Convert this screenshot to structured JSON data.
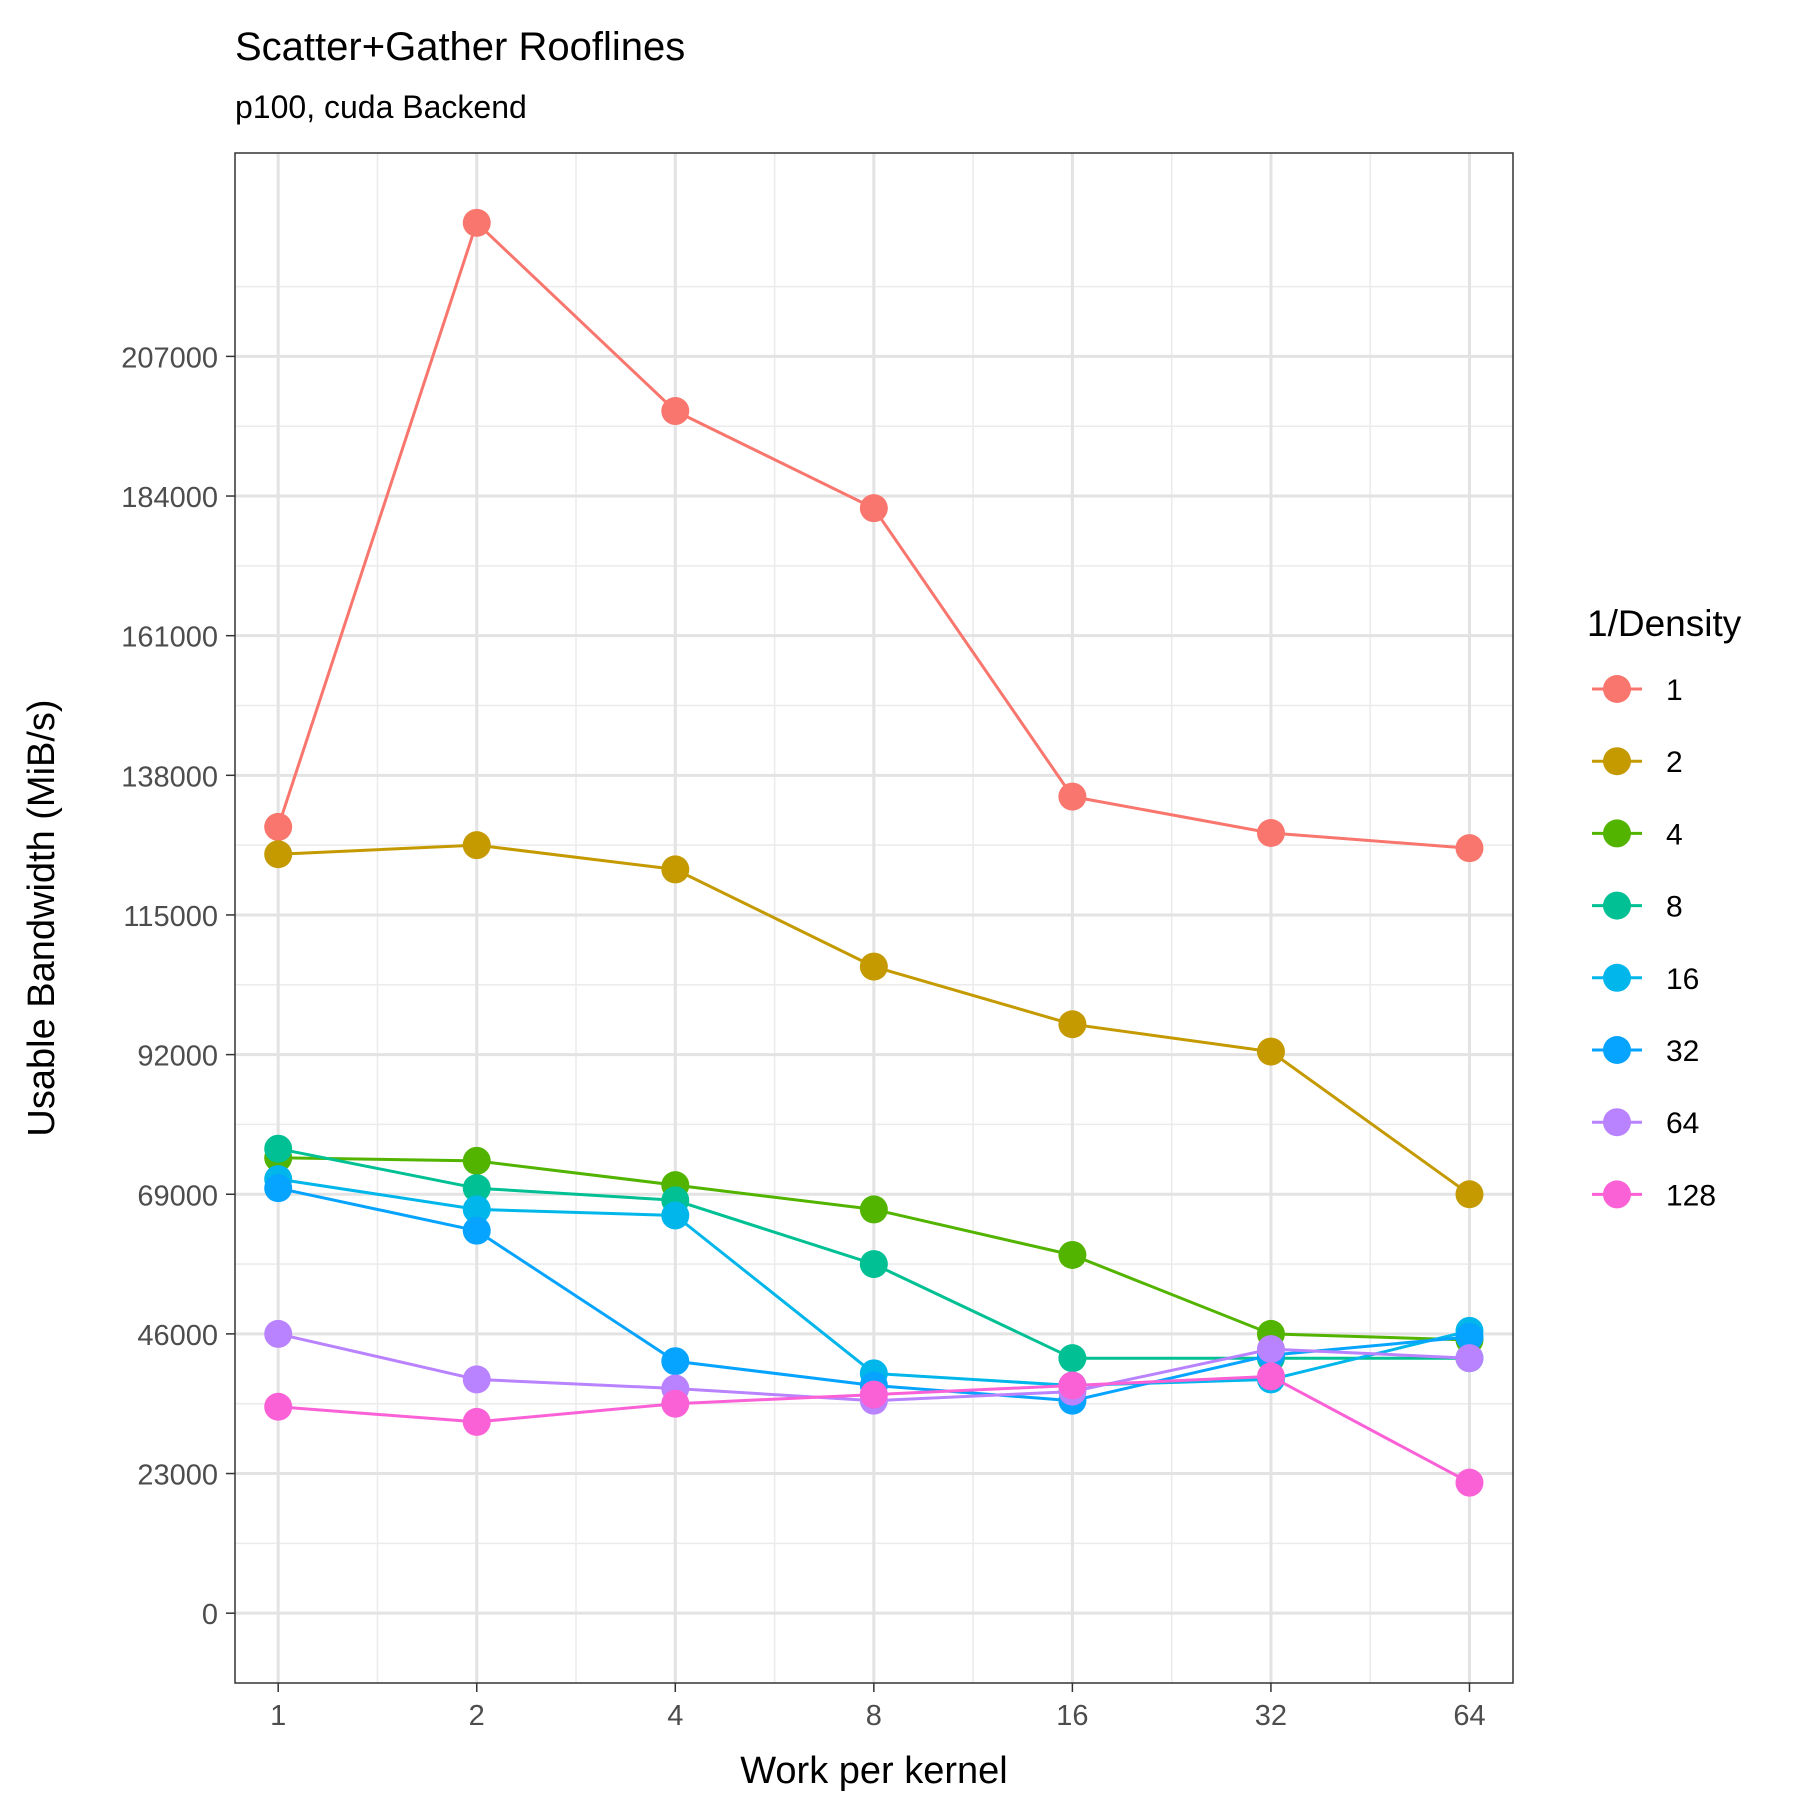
{
  "chart_data": {
    "type": "line",
    "title": "Scatter+Gather Rooflines",
    "subtitle": "p100, cuda Backend",
    "xlabel": "Work per kernel",
    "ylabel": "Usable Bandwidth (MiB/s)",
    "x_scale": "log2",
    "x": [
      1,
      2,
      4,
      8,
      16,
      32,
      64
    ],
    "x_tick_labels": [
      "1",
      "2",
      "4",
      "8",
      "16",
      "32",
      "64"
    ],
    "y_ticks": [
      0,
      23000,
      46000,
      69000,
      92000,
      115000,
      138000,
      161000,
      184000,
      207000
    ],
    "y_tick_labels": [
      "0",
      "23000",
      "46000",
      "69000",
      "92000",
      "115000",
      "138000",
      "161000",
      "184000",
      "207000"
    ],
    "xlim": [
      0.86,
      74.5
    ],
    "ylim": [
      -11500,
      240500
    ],
    "grid": true,
    "legend_title": "1/Density",
    "legend_position": "right",
    "series": [
      {
        "name": "1",
        "color": "#F8766D",
        "values": [
          129500,
          229000,
          198000,
          182000,
          134500,
          128500,
          126000
        ]
      },
      {
        "name": "2",
        "color": "#C49A00",
        "values": [
          125000,
          126500,
          122500,
          106500,
          97000,
          92500,
          69000
        ]
      },
      {
        "name": "4",
        "color": "#53B400",
        "values": [
          75000,
          74500,
          70500,
          66500,
          59000,
          46000,
          45000
        ]
      },
      {
        "name": "8",
        "color": "#00C094",
        "values": [
          76500,
          70000,
          68000,
          57500,
          42000,
          42000,
          42000
        ]
      },
      {
        "name": "16",
        "color": "#00B6EB",
        "values": [
          71500,
          66500,
          65500,
          39500,
          37500,
          38500,
          46500
        ]
      },
      {
        "name": "32",
        "color": "#06A4FF",
        "values": [
          70000,
          63000,
          41500,
          37500,
          35000,
          42500,
          45500
        ]
      },
      {
        "name": "64",
        "color": "#B983FF",
        "values": [
          46000,
          38500,
          37000,
          35000,
          36500,
          43500,
          42000
        ]
      },
      {
        "name": "128",
        "color": "#FB61D7",
        "values": [
          34000,
          31500,
          34500,
          36000,
          37500,
          39000,
          21500
        ]
      }
    ]
  }
}
